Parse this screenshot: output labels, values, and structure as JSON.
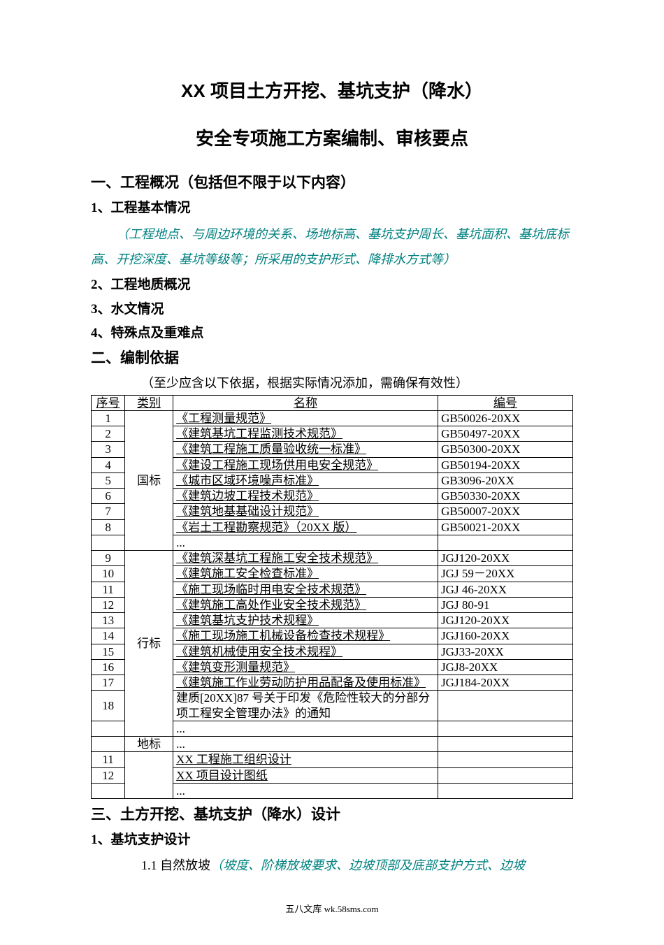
{
  "title_line1": "XX 项目土方开挖、基坑支护（降水）",
  "title_line2": "安全专项施工方案编制、审核要点",
  "sec1": {
    "heading": "一、工程概况（包括但不限于以下内容）",
    "item1": "1、工程基本情况",
    "item1_note": "（工程地点、与周边环境的关系、场地标高、基坑支护周长、基坑面积、基坑底标高、开挖深度、基坑等级等；所采用的支护形式、降排水方式等）",
    "item2": "2、工程地质概况",
    "item3": "3、水文情况",
    "item4": "4、特殊点及重难点"
  },
  "sec2": {
    "heading": "二、编制依据",
    "caption": "（至少应含以下依据，根据实际情况添加，需确保有效性）",
    "col_seq": "序号",
    "col_cat": "类别",
    "col_name": "名称",
    "col_code": "编号",
    "cat_national": "国标",
    "cat_industry": "行标",
    "cat_local": "地标",
    "ellipsis": "...",
    "rows_national": [
      {
        "seq": "1",
        "name": "《工程测量规范》",
        "code": "GB50026-20XX"
      },
      {
        "seq": "2",
        "name": "《建筑基坑工程监测技术规范》",
        "code": "GB50497-20XX"
      },
      {
        "seq": "3",
        "name": "《建筑工程施工质量验收统一标准》",
        "code": "GB50300-20XX"
      },
      {
        "seq": "4",
        "name": "《建设工程施工现场供用电安全规范》",
        "code": "GB50194-20XX"
      },
      {
        "seq": "5",
        "name": "《城市区域环境噪声标准》",
        "code": "GB3096-20XX"
      },
      {
        "seq": "6",
        "name": "《建筑边坡工程技术规范》",
        "code": "GB50330-20XX"
      },
      {
        "seq": "7",
        "name": "《建筑地基基础设计规范》",
        "code": "GB50007-20XX"
      },
      {
        "seq": "8",
        "name": "《岩土工程勘察规范》（20XX 版）",
        "code": "GB50021-20XX"
      }
    ],
    "rows_industry": [
      {
        "seq": "9",
        "name": "《建筑深基坑工程施工安全技术规范》",
        "code": "JGJ120-20XX"
      },
      {
        "seq": "10",
        "name": "《建筑施工安全检查标准》",
        "code": "JGJ 59－20XX"
      },
      {
        "seq": "11",
        "name": "《施工现场临时用电安全技术规范》",
        "code": "JGJ 46-20XX"
      },
      {
        "seq": "12",
        "name": "《建筑施工高处作业安全技术规范》",
        "code": "JGJ 80-91"
      },
      {
        "seq": "13",
        "name": "《建筑基坑支护技术规程》",
        "code": "JGJ120-20XX"
      },
      {
        "seq": "14",
        "name": "《施工现场施工机械设备检查技术规程》",
        "code": "JGJ160-20XX"
      },
      {
        "seq": "15",
        "name": "《建筑机械使用安全技术规程》",
        "code": "JGJ33-20XX"
      },
      {
        "seq": "16",
        "name": "《建筑变形测量规范》",
        "code": "JGJ8-20XX"
      },
      {
        "seq": "17",
        "name": "《建筑施工作业劳动防护用品配备及使用标准》",
        "code": "JGJ184-20XX"
      },
      {
        "seq": "18",
        "name": "建质[20XX]87 号关于印发《危险性较大的分部分项工程安全管理办法》的通知",
        "code": ""
      }
    ],
    "rows_other": [
      {
        "seq": "11",
        "name": "XX 工程施工组织设计",
        "code": ""
      },
      {
        "seq": "12",
        "name": "XX 项目设计图纸",
        "code": ""
      }
    ]
  },
  "sec3": {
    "heading": "三、土方开挖、基坑支护（降水）设计",
    "item1": "1、基坑支护设计",
    "sub11_label": "1.1 自然放坡",
    "sub11_note": "（坡度、阶梯放坡要求、边坡顶部及底部支护方式、边坡"
  },
  "footer": "五八文库 wk.58sms.com"
}
